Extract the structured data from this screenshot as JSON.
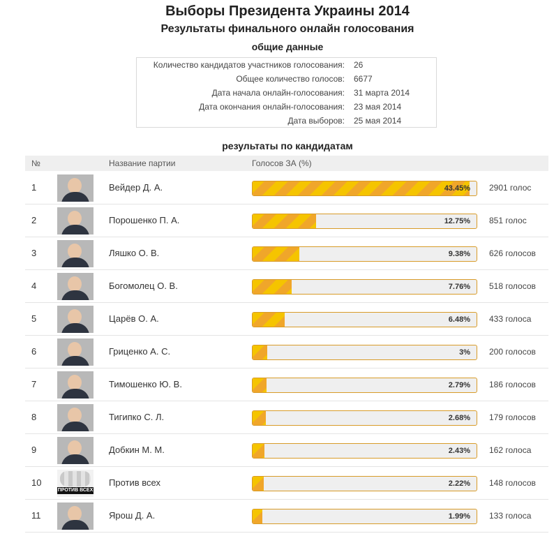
{
  "header": {
    "title": "Выборы Президента Украины 2014",
    "subtitle": "Результаты финального онлайн голосования"
  },
  "general": {
    "heading": "общие данные",
    "rows": [
      {
        "label": "Количество кандидатов участников голосования:",
        "value": "26"
      },
      {
        "label": "Общее количество голосов:",
        "value": "6677"
      },
      {
        "label": "Дата начала онлайн-голосования:",
        "value": "31 марта 2014"
      },
      {
        "label": "Дата окончания онлайн-голосования:",
        "value": "23 мая 2014"
      },
      {
        "label": "Дата выборов:",
        "value": "25 мая 2014"
      }
    ]
  },
  "results": {
    "heading": "результаты по кандидатам",
    "columns": {
      "num": "№",
      "party": "Название партии",
      "votes": "Голосов ЗА (%)"
    },
    "rows": [
      {
        "num": "1",
        "name": "Вейдер Д. А.",
        "percent": 43.45,
        "percent_label": "43.45%",
        "votes_label": "2901 голос"
      },
      {
        "num": "2",
        "name": "Порошенко П. А.",
        "percent": 12.75,
        "percent_label": "12.75%",
        "votes_label": "851 голос"
      },
      {
        "num": "3",
        "name": "Ляшко О. В.",
        "percent": 9.38,
        "percent_label": "9.38%",
        "votes_label": "626 голосов"
      },
      {
        "num": "4",
        "name": "Богомолец О. В.",
        "percent": 7.76,
        "percent_label": "7.76%",
        "votes_label": "518 голосов"
      },
      {
        "num": "5",
        "name": "Царёв О. А.",
        "percent": 6.48,
        "percent_label": "6.48%",
        "votes_label": "433 голоса"
      },
      {
        "num": "6",
        "name": "Гриценко А. С.",
        "percent": 3,
        "percent_label": "3%",
        "votes_label": "200 голосов"
      },
      {
        "num": "7",
        "name": "Тимошенко Ю. В.",
        "percent": 2.79,
        "percent_label": "2.79%",
        "votes_label": "186 голосов"
      },
      {
        "num": "8",
        "name": "Тигипко С. Л.",
        "percent": 2.68,
        "percent_label": "2.68%",
        "votes_label": "179 голосов"
      },
      {
        "num": "9",
        "name": "Добкин М. М.",
        "percent": 2.43,
        "percent_label": "2.43%",
        "votes_label": "162 голоса"
      },
      {
        "num": "10",
        "name": "Против всех",
        "percent": 2.22,
        "percent_label": "2.22%",
        "votes_label": "148 голосов",
        "photo_caption": "ПРОТИВ ВСЕХ"
      },
      {
        "num": "11",
        "name": "Ярош Д. А.",
        "percent": 1.99,
        "percent_label": "1.99%",
        "votes_label": "133 голоса"
      }
    ]
  },
  "colors": {
    "bar_stripe_a": "#f5c400",
    "bar_stripe_b": "#f0a62a",
    "bar_border": "#d89b28",
    "bar_track": "#efefef",
    "header_bg": "#efefef"
  }
}
